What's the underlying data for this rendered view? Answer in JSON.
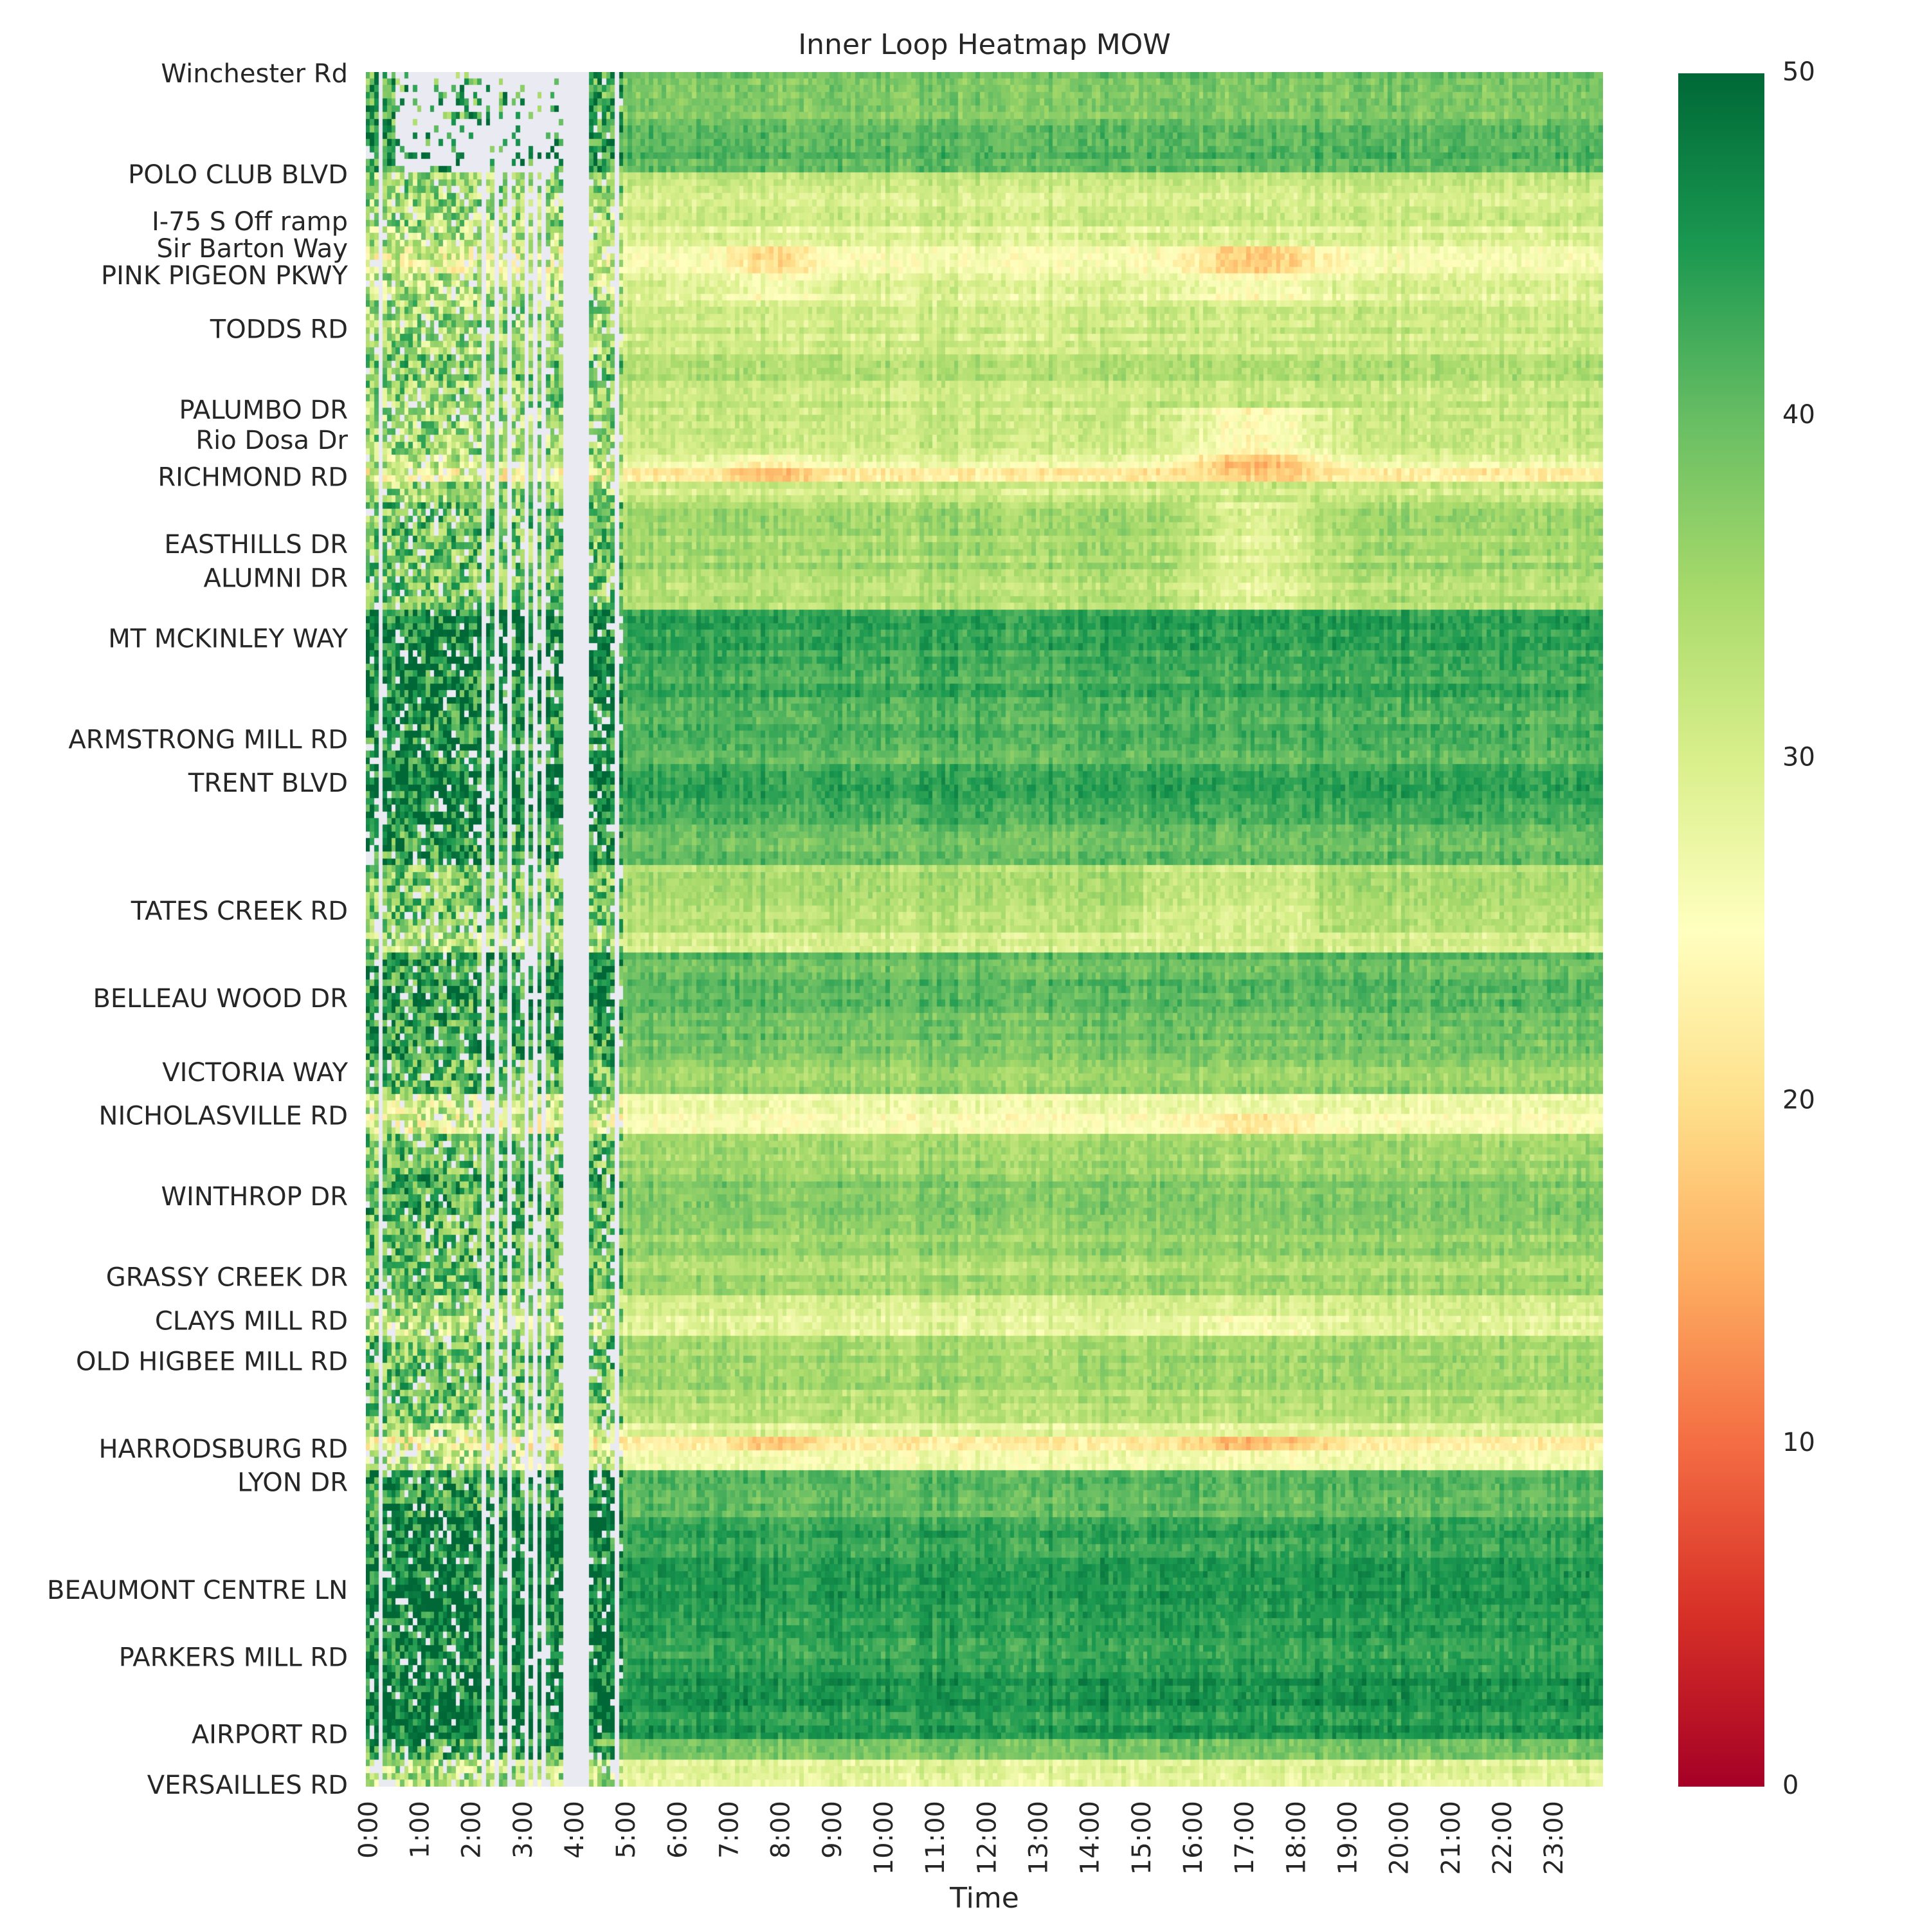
{
  "chart_data": {
    "type": "heatmap",
    "title": "Inner Loop Heatmap MOW",
    "xlabel": "Time",
    "ylabel": "",
    "x_tick_labels": [
      "0:00",
      "1:00",
      "2:00",
      "3:00",
      "4:00",
      "5:00",
      "6:00",
      "7:00",
      "8:00",
      "9:00",
      "10:00",
      "11:00",
      "12:00",
      "13:00",
      "14:00",
      "15:00",
      "16:00",
      "17:00",
      "18:00",
      "19:00",
      "20:00",
      "21:00",
      "22:00",
      "23:00"
    ],
    "y_tick_labels": [
      "Winchester Rd",
      "POLO CLUB BLVD",
      "I-75 S Off ramp",
      "Sir Barton Way",
      "PINK PIGEON PKWY",
      "TODDS RD",
      "PALUMBO DR",
      "Rio Dosa Dr",
      "RICHMOND RD",
      "EASTHILLS DR",
      "ALUMNI DR",
      "MT MCKINLEY WAY",
      "ARMSTRONG MILL RD",
      "TRENT BLVD",
      "TATES CREEK RD",
      "BELLEAU WOOD DR",
      "VICTORIA WAY",
      "NICHOLASVILLE RD",
      "WINTHROP DR",
      "GRASSY CREEK DR",
      "CLAYS MILL RD",
      "OLD HIGBEE MILL RD",
      "HARRODSBURG RD",
      "LYON DR",
      "BEAUMONT CENTRE LN",
      "PARKERS MILL RD",
      "AIRPORT RD",
      "VERSAILLES RD"
    ],
    "y_tick_positions": [
      0,
      15,
      22,
      26,
      30,
      38,
      50,
      54.5,
      60,
      70,
      75,
      84,
      99,
      105.5,
      124.5,
      137.5,
      148.5,
      155,
      167,
      179,
      185.5,
      191.5,
      204.5,
      209.5,
      225.5,
      235.5,
      247,
      254.5
    ],
    "n_rows": 255,
    "n_cols": 288,
    "minutes_per_col": 5,
    "row_profile": [
      {
        "start": 0,
        "end": 8,
        "value": 38,
        "missing": true
      },
      {
        "start": 8,
        "end": 15,
        "value": 41,
        "missing": true
      },
      {
        "start": 15,
        "end": 18,
        "value": 32
      },
      {
        "start": 18,
        "end": 23,
        "value": 31
      },
      {
        "start": 23,
        "end": 26,
        "value": 29
      },
      {
        "start": 26,
        "end": 30,
        "value": 25,
        "dip_am": 6,
        "dip_pm": 8
      },
      {
        "start": 30,
        "end": 34,
        "value": 29,
        "dip_am": 3,
        "dip_pm": 4
      },
      {
        "start": 34,
        "end": 42,
        "value": 31
      },
      {
        "start": 42,
        "end": 46,
        "value": 34
      },
      {
        "start": 46,
        "end": 50,
        "value": 32
      },
      {
        "start": 50,
        "end": 57,
        "value": 31,
        "dip_pm": 7
      },
      {
        "start": 57,
        "end": 59,
        "value": 28,
        "dip_am": 4,
        "dip_pm": 11
      },
      {
        "start": 59,
        "end": 61,
        "value": 23,
        "dip_am": 6,
        "dip_pm": 4
      },
      {
        "start": 61,
        "end": 64,
        "value": 31
      },
      {
        "start": 64,
        "end": 74,
        "value": 35,
        "dip_pm": 6
      },
      {
        "start": 74,
        "end": 80,
        "value": 34,
        "dip_pm": 5
      },
      {
        "start": 80,
        "end": 89,
        "value": 43
      },
      {
        "start": 89,
        "end": 96,
        "value": 42
      },
      {
        "start": 96,
        "end": 103,
        "value": 41
      },
      {
        "start": 103,
        "end": 112,
        "value": 43
      },
      {
        "start": 112,
        "end": 118,
        "value": 40
      },
      {
        "start": 118,
        "end": 128,
        "value": 34,
        "pm_shift": -3
      },
      {
        "start": 128,
        "end": 131,
        "value": 30
      },
      {
        "start": 131,
        "end": 141,
        "value": 40
      },
      {
        "start": 141,
        "end": 147,
        "value": 39
      },
      {
        "start": 147,
        "end": 152,
        "value": 36
      },
      {
        "start": 152,
        "end": 155,
        "value": 27
      },
      {
        "start": 155,
        "end": 158,
        "value": 25,
        "dip_pm": 4
      },
      {
        "start": 158,
        "end": 164,
        "value": 35
      },
      {
        "start": 164,
        "end": 170,
        "value": 38
      },
      {
        "start": 170,
        "end": 177,
        "value": 36
      },
      {
        "start": 177,
        "end": 182,
        "value": 35
      },
      {
        "start": 182,
        "end": 185,
        "value": 31
      },
      {
        "start": 185,
        "end": 188,
        "value": 28,
        "dip_pm": 3
      },
      {
        "start": 188,
        "end": 196,
        "value": 35
      },
      {
        "start": 196,
        "end": 201,
        "value": 34
      },
      {
        "start": 201,
        "end": 203,
        "value": 29
      },
      {
        "start": 203,
        "end": 205,
        "value": 23,
        "dip_am": 4,
        "dip_pm": 6
      },
      {
        "start": 205,
        "end": 208,
        "value": 28
      },
      {
        "start": 208,
        "end": 215,
        "value": 40
      },
      {
        "start": 215,
        "end": 222,
        "value": 44
      },
      {
        "start": 222,
        "end": 231,
        "value": 45
      },
      {
        "start": 231,
        "end": 238,
        "value": 44
      },
      {
        "start": 238,
        "end": 248,
        "value": 45
      },
      {
        "start": 248,
        "end": 251,
        "value": 38
      },
      {
        "start": 251,
        "end": 255,
        "value": 29
      }
    ],
    "night_missing_hours": [
      0.5,
      4.0
    ],
    "colorbar": {
      "vmin": 0,
      "vmax": 50,
      "ticks": [
        "0",
        "10",
        "20",
        "30",
        "40",
        "50"
      ],
      "colormap": "RdYlGn",
      "colormap_stops": [
        "#a50026",
        "#d73027",
        "#f46d43",
        "#fdae61",
        "#fee08b",
        "#ffffbf",
        "#d9ef8b",
        "#a6d96a",
        "#66bd63",
        "#1a9850",
        "#006837"
      ]
    },
    "missing_color": "#eaeaf2",
    "grid": false,
    "legend": "colorbar-right"
  }
}
